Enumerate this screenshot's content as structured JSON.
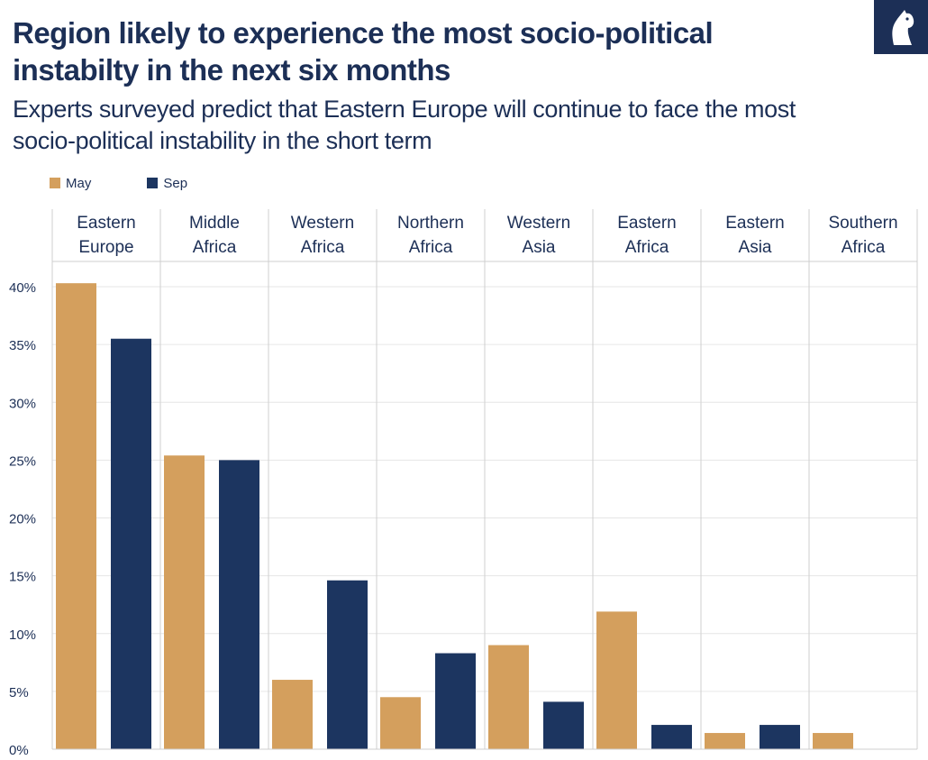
{
  "header": {
    "title": "Region likely to experience the most socio-political instabilty in the next six months",
    "subtitle": "Experts surveyed predict that Eastern Europe will continue to face the most socio-political instability in the short term"
  },
  "logo": {
    "icon": "horse-head-logo-icon",
    "background_color": "#1c2f56"
  },
  "colors": {
    "may": "#d49f5d",
    "sep": "#1c3560",
    "text": "#1c2f56",
    "grid": "#e6e6e6",
    "divider": "#cfcfcf"
  },
  "chart_data": {
    "type": "bar",
    "title": "Region likely to experience the most socio-political instabilty in the next six months",
    "subtitle": "Experts surveyed predict that Eastern Europe will continue to face the most socio-political instability in the short term",
    "categories": [
      [
        "Eastern",
        "Europe"
      ],
      [
        "Middle",
        "Africa"
      ],
      [
        "Western",
        "Africa"
      ],
      [
        "Northern",
        "Africa"
      ],
      [
        "Western",
        "Asia"
      ],
      [
        "Eastern",
        "Africa"
      ],
      [
        "Eastern",
        "Asia"
      ],
      [
        "Southern",
        "Africa"
      ]
    ],
    "series": [
      {
        "name": "May",
        "color": "#d49f5d",
        "values": [
          40.3,
          25.4,
          6.0,
          4.5,
          9.0,
          11.9,
          1.4,
          1.4
        ]
      },
      {
        "name": "Sep",
        "color": "#1c3560",
        "values": [
          35.5,
          25.0,
          14.6,
          8.3,
          4.1,
          2.1,
          2.1,
          0
        ]
      }
    ],
    "yticks": [
      "0%",
      "5%",
      "10%",
      "15%",
      "20%",
      "25%",
      "30%",
      "35%",
      "40%"
    ],
    "ytick_values": [
      0,
      5,
      10,
      15,
      20,
      25,
      30,
      35,
      40
    ],
    "ylim": [
      0,
      40
    ],
    "xlabel": "",
    "ylabel": "",
    "legend": "top-left",
    "grid": true
  }
}
